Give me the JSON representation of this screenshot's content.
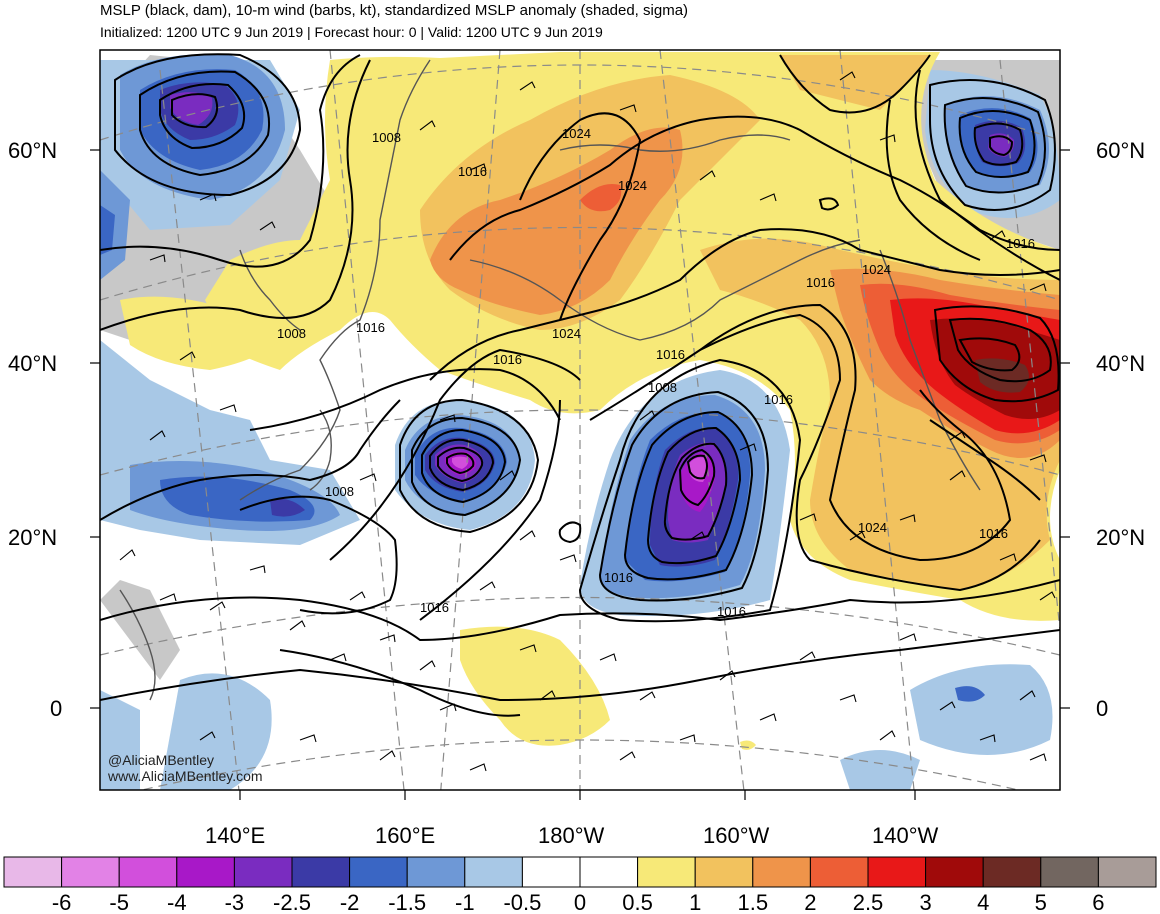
{
  "header": {
    "title": "MSLP (black, dam), 10-m wind (barbs, kt), standardized MSLP anomaly (shaded, sigma)",
    "subtitle": "Initialized: 1200 UTC 9 Jun 2019 | Forecast hour: 0 | Valid: 1200 UTC 9 Jun 2019"
  },
  "axes": {
    "lat_left": [
      "60°N",
      "40°N",
      "20°N",
      "0"
    ],
    "lat_right": [
      "60°N",
      "40°N",
      "20°N",
      "0"
    ],
    "lon_bottom": [
      "140°E",
      "160°E",
      "180°W",
      "160°W",
      "140°W"
    ]
  },
  "isobar_labels": [
    "1008",
    "1016",
    "1024",
    "1024",
    "1016",
    "1008",
    "1016",
    "1016",
    "1024",
    "1024",
    "1016",
    "1016",
    "1016",
    "1024",
    "1016",
    "1008",
    "1016",
    "1016",
    "1016",
    "1008"
  ],
  "credit": {
    "handle": "@AliciaMBentley",
    "site": "www.AliciaMBentley.com"
  },
  "colorbar": {
    "labels": [
      "-6",
      "-5",
      "-4",
      "-3",
      "-2.5",
      "-2",
      "-1.5",
      "-1",
      "-0.5",
      "0",
      "0.5",
      "1",
      "1.5",
      "2",
      "2.5",
      "3",
      "4",
      "5",
      "6"
    ],
    "colors": [
      "#e8b8e8",
      "#e282e6",
      "#d24fdc",
      "#a818c8",
      "#7a2cc0",
      "#3b3aa6",
      "#3a66c4",
      "#6e98d6",
      "#a8c8e6",
      "#ffffff",
      "#ffffff",
      "#f7e978",
      "#f2c25e",
      "#ef944a",
      "#ed5e36",
      "#e81818",
      "#a00a0a",
      "#6c2a24",
      "#726660",
      "#a89c98"
    ]
  },
  "colors": {
    "land_gray": "#c8c8c8",
    "coast": "#555555"
  }
}
